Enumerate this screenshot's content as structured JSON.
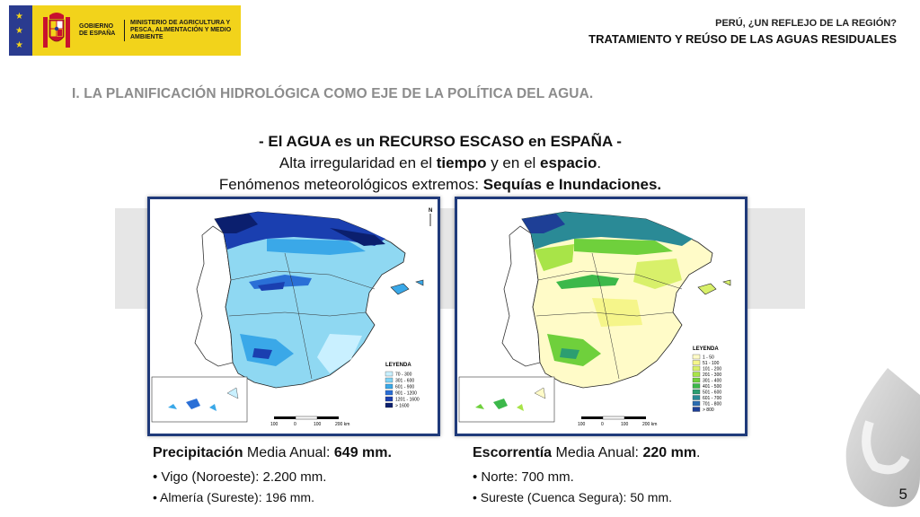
{
  "header": {
    "government": "GOBIERNO DE ESPAÑA",
    "ministry": "MINISTERIO DE AGRICULTURA Y PESCA, ALIMENTACIÓN Y MEDIO AMBIENTE",
    "line1": "PERÚ, ¿UN REFLEJO DE LA REGIÓN?",
    "line2": "TRATAMIENTO Y REÚSO DE LAS AGUAS RESIDUALES"
  },
  "section": {
    "heading": "I.   LA PLANIFICACIÓN HIDROLÓGICA COMO EJE DE LA POLÍTICA DEL AGUA."
  },
  "subtitle": {
    "line1": "- El AGUA es un RECURSO ESCASO en ESPAÑA -",
    "line2_prefix": "Alta irregularidad en el ",
    "line2_bold1": "tiempo",
    "line2_middle": " y en el ",
    "line2_bold2": "espacio",
    "line2_suffix": ".",
    "line3_prefix": "Fenómenos meteorológicos extremos: ",
    "line3_bold": "Sequías e Inundaciones."
  },
  "map_precipitation": {
    "legend_title": "LEYENDA",
    "legend_items": [
      "70 - 300",
      "301 - 600",
      "601 - 900",
      "901 - 1200",
      "1201 - 1600",
      "> 1600"
    ],
    "legend_colors": [
      "#c9f0ff",
      "#7fd3f5",
      "#3aa8e8",
      "#2a6fd6",
      "#1a3fb0",
      "#0b1f6e"
    ],
    "scale_labels": [
      "100",
      "0",
      "100",
      "200  km"
    ],
    "north": "N"
  },
  "map_runoff": {
    "legend_title": "LEYENDA",
    "legend_items": [
      "1 - 50",
      "51 - 100",
      "101 - 200",
      "201 - 300",
      "301 - 400",
      "401 - 500",
      "501 - 600",
      "601 - 700",
      "701 - 800",
      "> 800"
    ],
    "legend_colors": [
      "#fffbc8",
      "#f5f58a",
      "#d8f06a",
      "#a8e448",
      "#6fd03c",
      "#3cb84a",
      "#2c9e70",
      "#2a8a96",
      "#2a6cb0",
      "#1e3f96"
    ],
    "scale_labels": [
      "100",
      "0",
      "100",
      "200  km"
    ]
  },
  "caption_left": {
    "term": "Precipitación",
    "text": " Media Anual: ",
    "value": "649 mm.",
    "bullets": [
      "• Vigo (Noroeste): 2.200 mm.",
      "• Almería (Sureste): 196 mm."
    ]
  },
  "caption_right": {
    "term": "Escorrentía",
    "text": " Media Anual: ",
    "value": "220 mm",
    "suffix": ".",
    "bullets": [
      "• Norte: 700 mm.",
      "• Sureste (Cuenca Segura): 50 mm."
    ]
  },
  "page_number": "5",
  "colors": {
    "logo_yellow": "#f2d31b",
    "flag_blue": "#2a3b8f",
    "frame_blue": "#1f3a7a",
    "heading_grey": "#8c8c8c"
  }
}
